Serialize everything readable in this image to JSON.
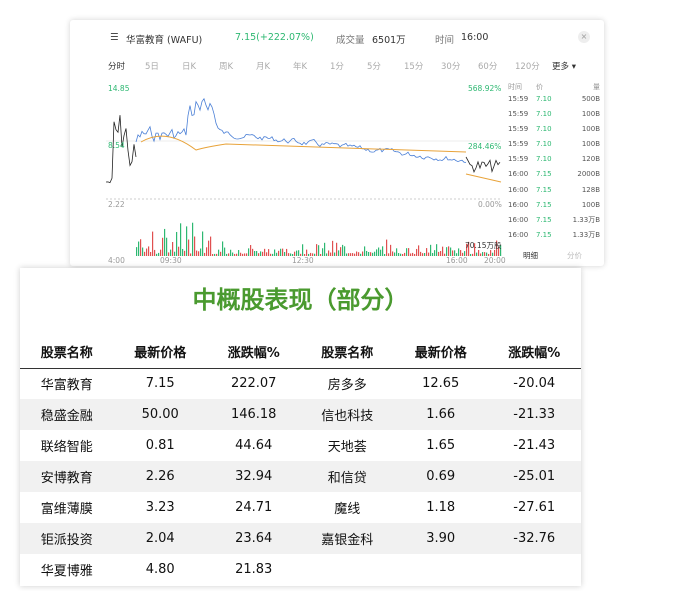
{
  "stock_card": {
    "name": "华富教育 (WAFU)",
    "price_change": "7.15(+222.07%)",
    "volume_label": "成交量",
    "volume": "6501万",
    "time_label": "时间",
    "time": "16:00",
    "tabs": [
      "分时",
      "5日",
      "日K",
      "周K",
      "月K",
      "年K",
      "1分",
      "5分",
      "15分",
      "30分",
      "60分",
      "120分",
      "更多 ▾"
    ],
    "axis": {
      "high": "14.85",
      "mid": "8.54",
      "low": "2.22",
      "pct_high": "568.92%",
      "pct_mid": "284.46%",
      "pct_low": "0.00%",
      "volume_max": "70.15万股",
      "times": [
        "4:00",
        "09:30",
        "12:30",
        "16:00",
        "20:00"
      ]
    },
    "ticks_header": [
      "时间",
      "价",
      "量"
    ],
    "ticks": [
      [
        "15:59",
        "7.10",
        "500B"
      ],
      [
        "15:59",
        "7.10",
        "100B"
      ],
      [
        "15:59",
        "7.10",
        "100B"
      ],
      [
        "15:59",
        "7.10",
        "100B"
      ],
      [
        "15:59",
        "7.10",
        "120B"
      ],
      [
        "16:00",
        "7.15",
        "2000B"
      ],
      [
        "16:00",
        "7.15",
        "128B"
      ],
      [
        "16:00",
        "7.15",
        "100B"
      ],
      [
        "16:00",
        "7.15",
        "1.33万B"
      ],
      [
        "16:00",
        "7.15",
        "1.33万B"
      ]
    ],
    "bottom_tabs": [
      "明细",
      "分价"
    ],
    "colors": {
      "up": "#2eb872",
      "line": "#4a7fd6",
      "avg": "#e8a33a",
      "down": "#e05050"
    }
  },
  "table": {
    "title": "中概股表现（部分）",
    "headers": [
      "股票名称",
      "最新价格",
      "涨跌幅%",
      "股票名称",
      "最新价格",
      "涨跌幅%"
    ],
    "rows": [
      [
        "华富教育",
        "7.15",
        "222.07",
        "房多多",
        "12.65",
        "-20.04"
      ],
      [
        "稳盛金融",
        "50.00",
        "146.18",
        "信也科技",
        "1.66",
        "-21.33"
      ],
      [
        "联络智能",
        "0.81",
        "44.64",
        "天地荟",
        "1.65",
        "-21.43"
      ],
      [
        "安博教育",
        "2.26",
        "32.94",
        "和信贷",
        "0.69",
        "-25.01"
      ],
      [
        "富维薄膜",
        "3.23",
        "24.71",
        "魔线",
        "1.18",
        "-27.61"
      ],
      [
        "钜派投资",
        "2.04",
        "23.64",
        "嘉银金科",
        "3.90",
        "-32.76"
      ],
      [
        "华夏博雅",
        "4.80",
        "21.83",
        "",
        "",
        ""
      ]
    ]
  }
}
